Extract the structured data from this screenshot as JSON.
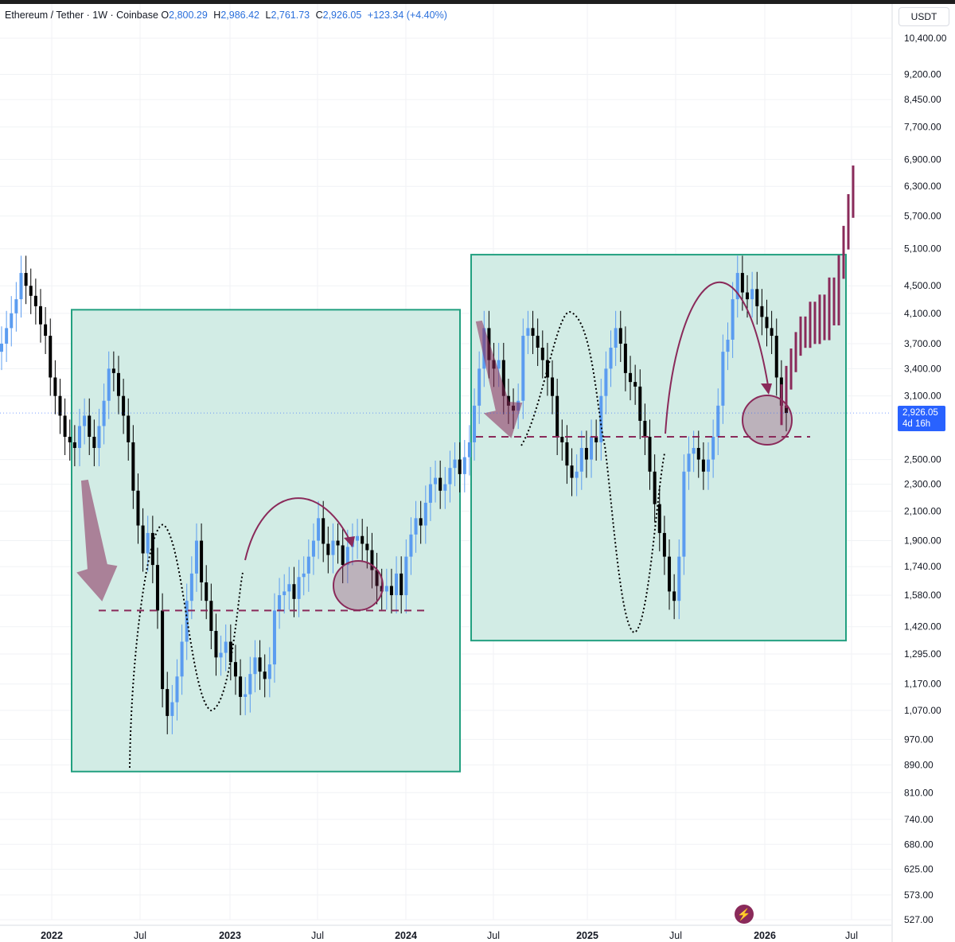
{
  "header": {
    "symbol": "Ethereum / Tether · 1W · Coinbase",
    "open_label": "O",
    "open": "2,800.29",
    "high_label": "H",
    "high": "2,986.42",
    "low_label": "L",
    "low": "2,761.73",
    "close_label": "C",
    "close": "2,926.05",
    "change": "+123.34 (+4.40%)"
  },
  "currency": "USDT",
  "last_price": {
    "value": "2,926.05",
    "countdown": "4d 16h"
  },
  "colors": {
    "up": "#5b9cf0",
    "down": "#000000",
    "box": "#d2ece5",
    "box_border": "#22a080",
    "annotation": "#8a2a5a",
    "projection": "#8a2a5a",
    "price_line": "#2962ff"
  },
  "chart_data": {
    "type": "candlestick",
    "scale": "log",
    "x_ticks": [
      "2022",
      "Jul",
      "2023",
      "Jul",
      "2024",
      "Jul",
      "2025",
      "Jul",
      "2026",
      "Jul"
    ],
    "y_ticks": [
      10400,
      9200,
      8450,
      7700,
      6900,
      6300,
      5700,
      5100,
      4500,
      4100,
      3700,
      3400,
      3100,
      2500,
      2300,
      2100,
      1900,
      1740,
      1580,
      1420,
      1295,
      1170,
      1070,
      970,
      890,
      810,
      740,
      680,
      625,
      573,
      527
    ],
    "y_tick_labels": [
      "10,400.00",
      "9,200.00",
      "8,450.00",
      "7,700.00",
      "6,900.00",
      "6,300.00",
      "5,700.00",
      "5,100.00",
      "4,500.00",
      "4,100.00",
      "3,700.00",
      "3,400.00",
      "3,100.00",
      "2,500.00",
      "2,300.00",
      "2,100.00",
      "1,900.00",
      "1,740.00",
      "1,580.00",
      "1,420.00",
      "1,295.00",
      "1,170.00",
      "1,070.00",
      "970.00",
      "890.00",
      "810.00",
      "740.00",
      "680.00",
      "625.00",
      "573.00",
      "527.00"
    ],
    "ylim": [
      527,
      10400
    ],
    "grid": true,
    "candle_path_weekly_close": [
      3700,
      3900,
      4100,
      4300,
      4700,
      4500,
      4350,
      4200,
      3950,
      3800,
      3300,
      3100,
      2900,
      2700,
      2650,
      2600,
      2800,
      2900,
      2700,
      2600,
      2800,
      3050,
      3400,
      3350,
      3100,
      2900,
      2650,
      2250,
      2000,
      1820,
      1950,
      1750,
      1500,
      1150,
      1050,
      1100,
      1200,
      1350,
      1550,
      1700,
      1900,
      1650,
      1550,
      1400,
      1280,
      1300,
      1350,
      1260,
      1200,
      1120,
      1130,
      1210,
      1280,
      1220,
      1190,
      1250,
      1500,
      1580,
      1600,
      1640,
      1560,
      1680,
      1700,
      1800,
      1900,
      2050,
      1880,
      1810,
      1900,
      1870,
      1750,
      1860,
      1900,
      1930,
      1880,
      1840,
      1720,
      1630,
      1600,
      1630,
      1580,
      1700,
      1580,
      1800,
      1940,
      2050,
      2000,
      2160,
      2300,
      2350,
      2250,
      2300,
      2430,
      2500,
      2380,
      2520,
      2650,
      3000,
      3400,
      3900,
      3500,
      3400,
      3500,
      3100,
      3000,
      2950,
      3050,
      3800,
      3900,
      3800,
      3650,
      3500,
      3300,
      3100,
      2700,
      2650,
      2450,
      2350,
      2400,
      2600,
      2500,
      2700,
      2650,
      3100,
      3400,
      3650,
      3900,
      3700,
      3350,
      3250,
      3200,
      2850,
      2700,
      2400,
      2150,
      1950,
      1800,
      1600,
      1550,
      1800,
      2400,
      2550,
      2600,
      2500,
      2400,
      2500,
      2700,
      3000,
      3600,
      3750,
      4300,
      4700,
      4400,
      4300,
      4450,
      4200,
      4050,
      3900,
      3800,
      3300,
      3000,
      2926
    ],
    "projection_closes": [
      3100,
      3300,
      3500,
      3700,
      3900,
      3800,
      4100,
      3850,
      4200,
      3900,
      4450,
      4100,
      4800,
      5300,
      5900,
      6500
    ],
    "annotations": [
      {
        "type": "box",
        "from": "2022-03",
        "to": "2024-05",
        "low": 870,
        "high": 4150
      },
      {
        "type": "box",
        "from": "2024-05",
        "to": "2026-06",
        "low": 1355,
        "high": 5000
      },
      {
        "type": "support_line",
        "value": 1500
      },
      {
        "type": "support_line",
        "value": 2700
      }
    ]
  }
}
